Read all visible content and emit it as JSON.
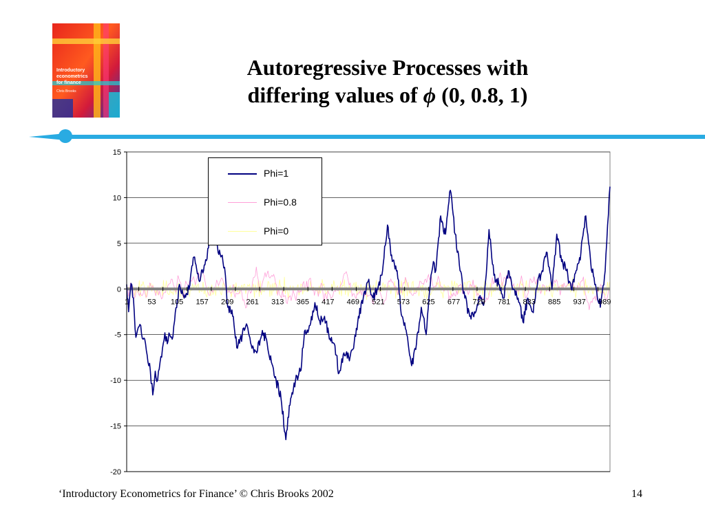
{
  "slide": {
    "title_line1": "Autoregressive Processes with",
    "title_line2_prefix": "differing values of ",
    "title_symbol": "ϕ",
    "title_line2_suffix": " (0, 0.8, 1)",
    "footer": "‘Introductory Econometrics for Finance’ © Chris Brooks 2002",
    "page_number": "14"
  },
  "book_cover": {
    "title_line1": "Introductory",
    "title_line2": "econometrics",
    "title_line3": "for finance",
    "author": "Chris Brooks"
  },
  "colors": {
    "divider": "#29abe2",
    "phi1": "#000080",
    "phi08": "#ff9ed8",
    "phi0": "#ffff99",
    "zero_line": "#808080"
  },
  "chart_data": {
    "type": "line",
    "x_tick_labels": [
      "1",
      "53",
      "105",
      "157",
      "209",
      "261",
      "313",
      "365",
      "417",
      "469",
      "521",
      "573",
      "625",
      "677",
      "729",
      "781",
      "833",
      "885",
      "937",
      "989"
    ],
    "y_ticks": [
      15,
      10,
      5,
      0,
      -5,
      -10,
      -15,
      -20
    ],
    "ylim": [
      -20,
      15
    ],
    "xlim": [
      1,
      1000
    ],
    "grid": true,
    "legend_position": "top-center",
    "series": [
      {
        "name": "Phi=1",
        "color": "#000080",
        "x": [
          1,
          5,
          10,
          15,
          20,
          25,
          30,
          35,
          40,
          45,
          50,
          55,
          60,
          65,
          70,
          75,
          80,
          85,
          90,
          95,
          100,
          110,
          120,
          130,
          140,
          150,
          160,
          170,
          180,
          190,
          200,
          205,
          210,
          220,
          230,
          240,
          250,
          260,
          270,
          280,
          290,
          300,
          310,
          320,
          330,
          340,
          350,
          360,
          370,
          380,
          390,
          400,
          410,
          420,
          430,
          440,
          450,
          460,
          470,
          480,
          490,
          500,
          510,
          520,
          530,
          540,
          550,
          560,
          570,
          580,
          590,
          600,
          610,
          620,
          630,
          635,
          640,
          650,
          660,
          670,
          680,
          690,
          700,
          710,
          720,
          730,
          740,
          750,
          760,
          770,
          780,
          790,
          800,
          810,
          820,
          830,
          840,
          850,
          860,
          870,
          880,
          890,
          900,
          910,
          920,
          930,
          940,
          950,
          960,
          970,
          980,
          990,
          995,
          1000
        ],
        "values": [
          0.5,
          -2.5,
          0.6,
          -1.0,
          -5.3,
          -4.2,
          -4.0,
          -5.5,
          -6.0,
          -8.0,
          -9.0,
          -11.6,
          -9.0,
          -10.0,
          -8.0,
          -6.5,
          -4.8,
          -6.0,
          -5.0,
          -5.5,
          -3.5,
          0.5,
          -1.0,
          0.0,
          3.5,
          1.0,
          2.0,
          4.5,
          8.0,
          4.0,
          3.0,
          1.5,
          -2.0,
          -3.0,
          -6.5,
          -5.0,
          -4.0,
          -6.5,
          -7.0,
          -5.0,
          -5.5,
          -8.0,
          -10.0,
          -12.0,
          -16.5,
          -12.0,
          -10.0,
          -9.0,
          -4.5,
          -4.0,
          -1.5,
          -3.5,
          -3.0,
          -5.5,
          -6.0,
          -9.2,
          -7.0,
          -7.5,
          -6.5,
          -3.0,
          -1.0,
          0.8,
          -1.0,
          0.0,
          2.0,
          7.0,
          3.0,
          2.0,
          -3.0,
          -5.0,
          -8.4,
          -6.0,
          -2.0,
          -5.0,
          1.5,
          3.0,
          2.0,
          8.0,
          6.0,
          10.8,
          6.0,
          2.0,
          -1.0,
          -3.0,
          -2.5,
          -1.0,
          -1.5,
          6.5,
          1.5,
          0.5,
          -1.0,
          2.0,
          0.0,
          -1.0,
          -3.6,
          -1.0,
          -2.5,
          0.5,
          2.0,
          4.0,
          0.0,
          6.0,
          3.0,
          2.0,
          0.0,
          2.0,
          4.0,
          8.0,
          3.0,
          0.5,
          -2.0,
          2.0,
          7.0,
          11.2
        ]
      },
      {
        "name": "Phi=0.8",
        "color": "#ff9ed8",
        "values_range": [
          -3,
          3
        ]
      },
      {
        "name": "Phi=0",
        "color": "#ffff99",
        "values_range": [
          -2,
          2
        ]
      }
    ]
  }
}
